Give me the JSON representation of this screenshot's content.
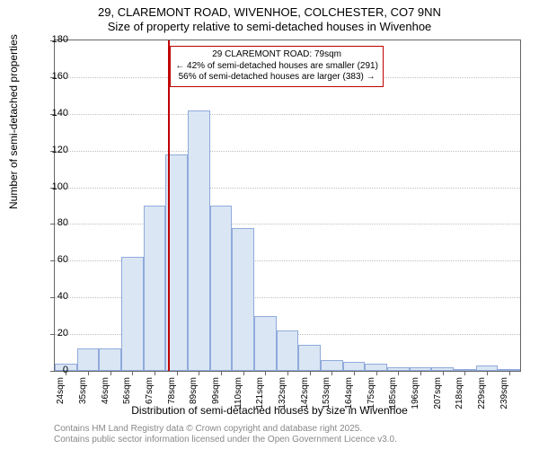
{
  "title": {
    "line1": "29, CLAREMONT ROAD, WIVENHOE, COLCHESTER, CO7 9NN",
    "line2": "Size of property relative to semi-detached houses in Wivenhoe"
  },
  "axes": {
    "ylabel": "Number of semi-detached properties",
    "xlabel": "Distribution of semi-detached houses by size in Wivenhoe",
    "ylim_max": 180,
    "yticks": [
      0,
      20,
      40,
      60,
      80,
      100,
      120,
      140,
      160,
      180
    ],
    "xticks": [
      "24sqm",
      "35sqm",
      "46sqm",
      "56sqm",
      "67sqm",
      "78sqm",
      "89sqm",
      "99sqm",
      "110sqm",
      "121sqm",
      "132sqm",
      "142sqm",
      "153sqm",
      "164sqm",
      "175sqm",
      "185sqm",
      "196sqm",
      "207sqm",
      "218sqm",
      "229sqm",
      "239sqm"
    ]
  },
  "bars": {
    "values": [
      4,
      12,
      12,
      62,
      90,
      118,
      142,
      90,
      78,
      30,
      22,
      14,
      6,
      5,
      4,
      2,
      2,
      2,
      0,
      3,
      0
    ],
    "fill": "#dbe6f4",
    "stroke": "#8faadc",
    "width_frac": 1.0
  },
  "marker": {
    "bin_index": 5,
    "position_in_bin": 0.12,
    "color": "#c00000"
  },
  "annotation": {
    "line1": "29 CLAREMONT ROAD: 79sqm",
    "line2": "← 42% of semi-detached houses are smaller (291)",
    "line3": "56% of semi-detached houses are larger (383) →",
    "border_color": "#c00000"
  },
  "footer": {
    "line1": "Contains HM Land Registry data © Crown copyright and database right 2025.",
    "line2": "Contains public sector information licensed under the Open Government Licence v3.0."
  },
  "style": {
    "grid_color": "#bfbfbf",
    "axis_color": "#666666",
    "text_color": "#000000",
    "footer_color": "#888888",
    "background": "#ffffff"
  }
}
